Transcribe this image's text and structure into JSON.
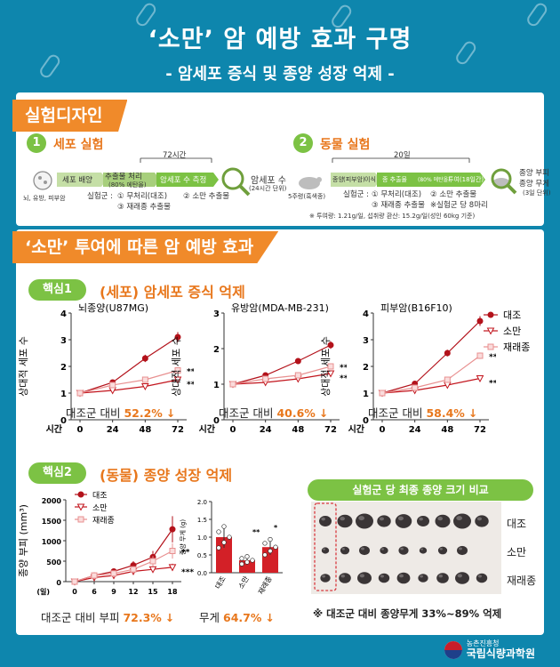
{
  "header": {
    "title": "‘소만’ 암 예방 효과 구명",
    "subtitle": "- 암세포 증식 및 종양 성장 억제 -"
  },
  "design": {
    "tag": "실험디자인",
    "cell": {
      "num": "1",
      "title": "세포 실험",
      "duration": "72시간",
      "arrow1": "세포 배양",
      "arrow2": "추출물 처리",
      "arrow2_sub": "(80% 에탄올)",
      "arrow3": "암세포 수 측정",
      "source": "뇌, 유방, 피부암",
      "groups_label": "실험군 :",
      "group1": "① 무처리(대조)",
      "group2": "② 소만 추출물",
      "group3": "③ 재래종 추출물",
      "result": "암세포 수",
      "result_sub": "(24시간 단위)"
    },
    "animal": {
      "num": "2",
      "title": "동물 실험",
      "duration": "20일",
      "arrow1": "종양",
      "arrow1_sub": "(피부암)",
      "arrow1b": "이식",
      "arrow2": "종 추출물",
      "arrow2_sub": "(80% 에탄올)",
      "arrow2b": "투여(18일간)",
      "source": "5주령(흑색종)",
      "groups_label": "실험군 :",
      "group1": "① 무처리(대조)",
      "group2": "② 소만 추출물",
      "group3": "③ 재래종 추출물",
      "group4": "※실험군 당 8마리",
      "result1": "종양 부피",
      "result2": "종양 무게",
      "result_sub": "(3일 단위)",
      "note": "※ 투여량: 1.21g/일, 섭취량 환산: 15.2g/일(성인 60kg 기준)"
    }
  },
  "effects": {
    "tag": "‘소만’ 투여에 따른 암 예방 효과",
    "key1_tag": "핵심1",
    "key1_title": "(세포) 암세포 증식 억제",
    "key2_tag": "핵심2",
    "key2_title": "(동물) 종양 성장 억제",
    "ylabel": "상대적 세포 수",
    "xlabel": "시간",
    "legend": [
      "대조",
      "소만",
      "재래종"
    ],
    "compare_prefix": "대조군 대비",
    "arrow": "↓",
    "photo_title": "실험군 당 최종 종양 크기 비교",
    "photo_labels": [
      "대조",
      "소만",
      "재래종"
    ],
    "photo_note": "※ 대조군 대비 종양무게 33%~89% 억제",
    "vol_ylabel": "종양 부피 (mm³)",
    "vol_xunit": "(일)",
    "vol_result_prefix": "대조군 대비 부피",
    "vol_result": "72.3%",
    "weight_ylabel": "종양 무게 (g)",
    "weight_result_prefix": "무게",
    "weight_result": "64.7%",
    "weight_categories": [
      "대조",
      "소만",
      "재래종"
    ]
  },
  "footer": {
    "org_small": "농촌진흥청",
    "org": "국립식량과학원"
  },
  "colors": {
    "background": "#0e86ad",
    "accent_orange": "#f08a2a",
    "accent_green": "#7cc244",
    "control": "#b3121b",
    "soman": "#c2141c",
    "native": "#e89090"
  },
  "chart_data": [
    {
      "type": "line",
      "title": "뇌종양(U87MG)",
      "x": [
        0,
        24,
        48,
        72
      ],
      "xlabel": "시간",
      "ylabel": "상대적 세포 수",
      "ylim": [
        0,
        4
      ],
      "yticks": [
        0,
        1,
        2,
        3,
        4
      ],
      "series": [
        {
          "name": "대조",
          "values": [
            1.0,
            1.4,
            2.3,
            3.1
          ]
        },
        {
          "name": "소만",
          "values": [
            1.0,
            1.1,
            1.25,
            1.5
          ]
        },
        {
          "name": "재래종",
          "values": [
            1.0,
            1.3,
            1.5,
            1.85
          ]
        }
      ],
      "annotations": [
        "**",
        "***"
      ],
      "result_value": "52.2%"
    },
    {
      "type": "line",
      "title": "유방암(MDA-MB-231)",
      "x": [
        0,
        24,
        48,
        72
      ],
      "xlabel": "시간",
      "ylabel": "상대적 세포 수",
      "ylim": [
        0,
        3
      ],
      "yticks": [
        0,
        1,
        2,
        3
      ],
      "series": [
        {
          "name": "대조",
          "values": [
            1.0,
            1.25,
            1.65,
            2.1
          ]
        },
        {
          "name": "소만",
          "values": [
            1.0,
            1.05,
            1.15,
            1.3
          ]
        },
        {
          "name": "재래종",
          "values": [
            1.0,
            1.15,
            1.25,
            1.5
          ]
        }
      ],
      "annotations": [
        "**",
        "***"
      ],
      "result_value": "40.6%"
    },
    {
      "type": "line",
      "title": "피부암(B16F10)",
      "x": [
        0,
        24,
        48,
        72
      ],
      "xlabel": "시간",
      "ylabel": "상대적 세포 수",
      "ylim": [
        0,
        4
      ],
      "yticks": [
        0,
        1,
        2,
        3,
        4
      ],
      "series": [
        {
          "name": "대조",
          "values": [
            1.0,
            1.35,
            2.5,
            3.7
          ]
        },
        {
          "name": "소만",
          "values": [
            1.0,
            1.1,
            1.3,
            1.55
          ]
        },
        {
          "name": "재래종",
          "values": [
            1.0,
            1.2,
            1.5,
            2.4
          ]
        }
      ],
      "annotations": [
        "**",
        "***"
      ],
      "result_value": "58.4%"
    },
    {
      "type": "line",
      "title": "",
      "x": [
        0,
        6,
        9,
        12,
        15,
        18
      ],
      "xlabel": "(일)",
      "ylabel": "종양 부피 (mm³)",
      "ylim": [
        0,
        2000
      ],
      "yticks": [
        0,
        500,
        1000,
        1500,
        2000
      ],
      "series": [
        {
          "name": "대조",
          "values": [
            0,
            150,
            250,
            400,
            600,
            1280
          ]
        },
        {
          "name": "소만",
          "values": [
            0,
            100,
            150,
            250,
            300,
            350
          ]
        },
        {
          "name": "재래종",
          "values": [
            0,
            150,
            200,
            300,
            500,
            750
          ]
        }
      ],
      "annotations": [
        "**",
        "***"
      ]
    },
    {
      "type": "bar",
      "title": "",
      "categories": [
        "대조",
        "소만",
        "재래종"
      ],
      "values": [
        1.0,
        0.35,
        0.72
      ],
      "ylabel": "종양 무게 (g)",
      "ylim": [
        0,
        2.0
      ],
      "yticks": [
        0,
        0.5,
        1.0,
        1.5,
        2.0
      ],
      "annotations": [
        "**",
        "*"
      ]
    }
  ]
}
